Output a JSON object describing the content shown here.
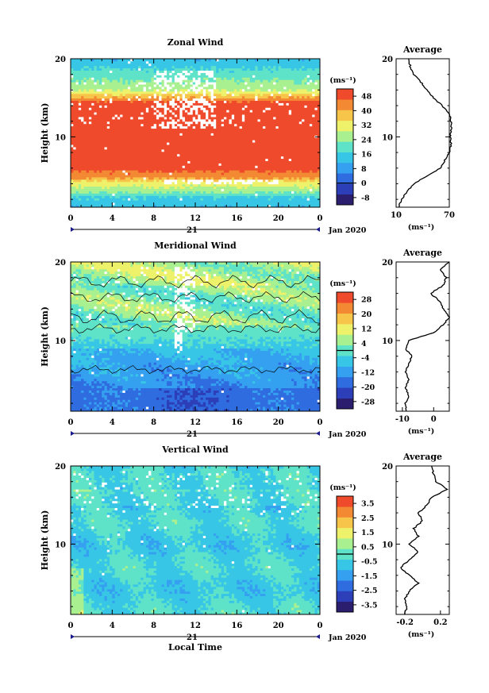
{
  "chart_data": [
    {
      "type": "heatmap",
      "title": "Zonal Wind",
      "ylabel": "Height (km)",
      "xlim": [
        0,
        24
      ],
      "ylim": [
        1,
        20
      ],
      "x_ticks": [
        "0",
        "4",
        "8",
        "12",
        "16",
        "20",
        "0"
      ],
      "y_ticks": [
        "10",
        "20"
      ],
      "date_label": "21",
      "month_label": "Jan 2020",
      "colorbar": {
        "unit": "(ms⁻¹)",
        "ticks": [
          "-8",
          "0",
          "8",
          "16",
          "24",
          "32",
          "40",
          "48"
        ],
        "range": [
          -12,
          52
        ]
      },
      "average": {
        "title": "Average",
        "xlabel": "(ms⁻¹)",
        "x_ticks": [
          "10",
          "70"
        ],
        "xlim": [
          10,
          70
        ],
        "profile_height": [
          1,
          2,
          3,
          4,
          5,
          6,
          7,
          8,
          9,
          10,
          11,
          12,
          13,
          14,
          15,
          16,
          17,
          18,
          19,
          20
        ],
        "profile_value": [
          13,
          16,
          22,
          30,
          45,
          60,
          65,
          70,
          72,
          71,
          72,
          72,
          70,
          62,
          52,
          45,
          38,
          30,
          26,
          24
        ]
      }
    },
    {
      "type": "heatmap",
      "title": "Meridional Wind",
      "ylabel": "Height (km)",
      "xlim": [
        0,
        24
      ],
      "ylim": [
        1,
        20
      ],
      "x_ticks": [
        "0",
        "4",
        "8",
        "12",
        "16",
        "20",
        "0"
      ],
      "y_ticks": [
        "10",
        "20"
      ],
      "date_label": "21",
      "month_label": "Jan 2020",
      "colorbar": {
        "unit": "(ms⁻¹)",
        "ticks": [
          "-28",
          "-20",
          "-12",
          "-4",
          "4",
          "12",
          "20",
          "28"
        ],
        "range": [
          -32,
          32
        ]
      },
      "average": {
        "title": "Average",
        "xlabel": "(ms⁻¹)",
        "x_ticks": [
          "-10",
          "0"
        ],
        "xlim": [
          -12,
          5
        ],
        "profile_height": [
          1,
          2,
          3,
          4,
          5,
          6,
          7,
          8,
          9,
          10,
          11,
          12,
          13,
          14,
          15,
          16,
          17,
          18,
          19,
          20
        ],
        "profile_value": [
          -9,
          -9,
          -8,
          -9,
          -8,
          -9,
          -8,
          -7,
          -9,
          -8,
          0,
          3,
          5,
          3,
          2,
          -1,
          3,
          4,
          2,
          5
        ]
      }
    },
    {
      "type": "heatmap",
      "title": "Vertical Wind",
      "ylabel": "Height (km)",
      "xlabel": "Local Time",
      "xlim": [
        0,
        24
      ],
      "ylim": [
        1,
        20
      ],
      "x_ticks": [
        "0",
        "4",
        "8",
        "12",
        "16",
        "20",
        "0"
      ],
      "y_ticks": [
        "10",
        "20"
      ],
      "date_label": "21",
      "month_label": "Jan 2020",
      "colorbar": {
        "unit": "(ms⁻¹)",
        "ticks": [
          "-3.5",
          "-2.5",
          "-1.5",
          "-0.5",
          "0.5",
          "1.5",
          "2.5",
          "3.5"
        ],
        "range": [
          -4,
          4
        ]
      },
      "average": {
        "title": "Average",
        "xlabel": "(ms⁻¹)",
        "x_ticks": [
          "-0.2",
          "0.2"
        ],
        "xlim": [
          -0.3,
          0.3
        ],
        "profile_height": [
          1,
          2,
          3,
          4,
          5,
          6,
          7,
          8,
          9,
          10,
          11,
          12,
          13,
          14,
          15,
          16,
          17,
          18,
          19,
          20
        ],
        "profile_value": [
          -0.2,
          -0.18,
          -0.2,
          -0.15,
          -0.05,
          -0.15,
          -0.25,
          -0.15,
          -0.05,
          -0.15,
          -0.05,
          -0.1,
          0.0,
          -0.05,
          0.05,
          0.1,
          0.28,
          0.15,
          0.12,
          0.1
        ]
      }
    }
  ],
  "colormap": [
    "#2b1e6e",
    "#2c3fb8",
    "#2f6ce0",
    "#35a0f0",
    "#38c6e6",
    "#5fe3c8",
    "#a8f090",
    "#eef26a",
    "#f7c54a",
    "#f38a33",
    "#ef4a2c"
  ]
}
